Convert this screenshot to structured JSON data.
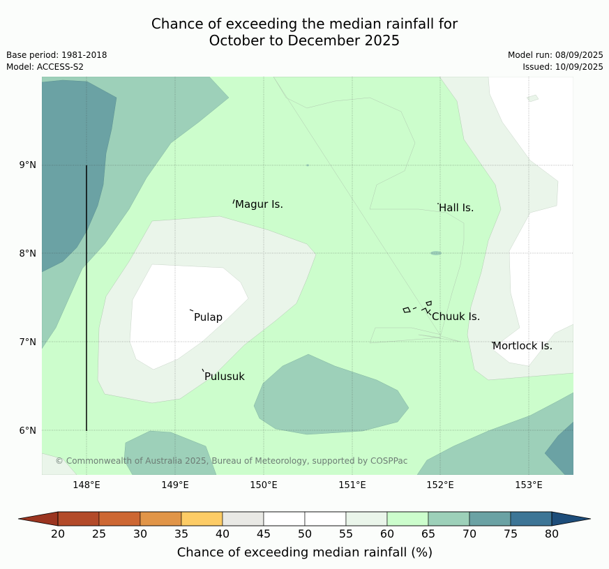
{
  "title_line1": "Chance of exceeding the median rainfall for",
  "title_line2": "October to December 2025",
  "meta_left": {
    "base_period": "Base period: 1981-2018",
    "model": "Model: ACCESS-S2"
  },
  "meta_right": {
    "model_run": "Model run: 08/09/2025",
    "issued": "Issued: 10/09/2025"
  },
  "map": {
    "lat_labels": [
      "9°N",
      "8°N",
      "7°N",
      "6°N"
    ],
    "lon_labels": [
      "148°E",
      "149°E",
      "150°E",
      "151°E",
      "152°E",
      "153°E"
    ],
    "places": [
      "Magur Is.",
      "Hall Is.",
      "Pulap",
      "Chuuk Is.",
      "Mortlock Is.",
      "Pulusuk"
    ],
    "copyright": "© Commonwealth of Australia 2025, Bureau of Meteorology, supported by COSPPac"
  },
  "colorbar": {
    "ticks": [
      "20",
      "25",
      "30",
      "35",
      "40",
      "45",
      "50",
      "55",
      "60",
      "65",
      "70",
      "75",
      "80"
    ],
    "colors": [
      "#b34a29",
      "#cd6733",
      "#e19548",
      "#fdcc66",
      "#e9e9e5",
      "#ffffff",
      "#ffffff",
      "#eaf5ea",
      "#ccfdcc",
      "#9dd0b9",
      "#6ba2a4",
      "#3d7596"
    ],
    "under_color": "#9b3520",
    "over_color": "#1d4d7a",
    "label": "Chance of exceeding median rainfall (%)"
  }
}
